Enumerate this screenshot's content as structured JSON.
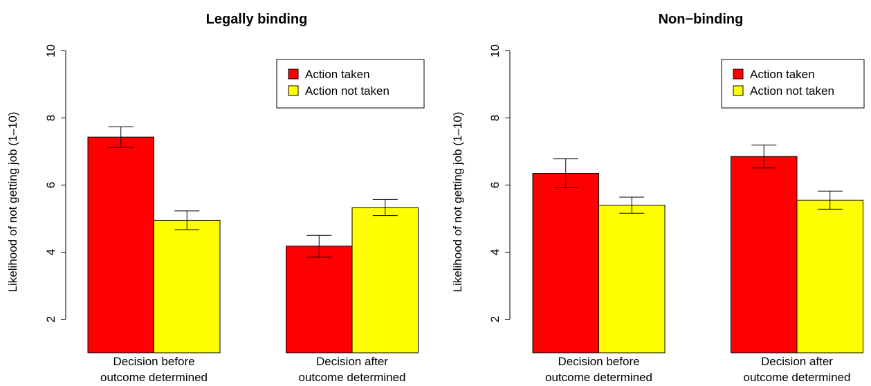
{
  "chart_data": [
    {
      "type": "bar",
      "title": "Legally binding",
      "ylabel": "Likelihood of not getting job (1–10)",
      "xlabel": "",
      "ylim": [
        1,
        10
      ],
      "yticks": [
        "2",
        "4",
        "6",
        "8",
        "10"
      ],
      "categories": [
        [
          "Decision before",
          "outcome determined"
        ],
        [
          "Decision after",
          "outcome determined"
        ]
      ],
      "series": [
        {
          "name": "Action taken",
          "color": "#ff0000",
          "values": [
            7.43,
            4.18
          ],
          "err_low": [
            7.12,
            3.85
          ],
          "err_high": [
            7.74,
            4.5
          ]
        },
        {
          "name": "Action not taken",
          "color": "#ffff00",
          "values": [
            4.95,
            5.33
          ],
          "err_low": [
            4.67,
            5.09
          ],
          "err_high": [
            5.23,
            5.57
          ]
        }
      ],
      "legend": "top-right",
      "grid": false
    },
    {
      "type": "bar",
      "title": "Non−binding",
      "ylabel": "Likelihood of not getting job (1–10)",
      "xlabel": "",
      "ylim": [
        1,
        10
      ],
      "yticks": [
        "2",
        "4",
        "6",
        "8",
        "10"
      ],
      "categories": [
        [
          "Decision before",
          "outcome determined"
        ],
        [
          "Decision after",
          "outcome determined"
        ]
      ],
      "series": [
        {
          "name": "Action taken",
          "color": "#ff0000",
          "values": [
            6.35,
            6.85
          ],
          "err_low": [
            5.92,
            6.51
          ],
          "err_high": [
            6.78,
            7.19
          ]
        },
        {
          "name": "Action not taken",
          "color": "#ffff00",
          "values": [
            5.4,
            5.55
          ],
          "err_low": [
            5.16,
            5.28
          ],
          "err_high": [
            5.64,
            5.82
          ]
        }
      ],
      "legend": "top-right",
      "grid": false
    }
  ]
}
